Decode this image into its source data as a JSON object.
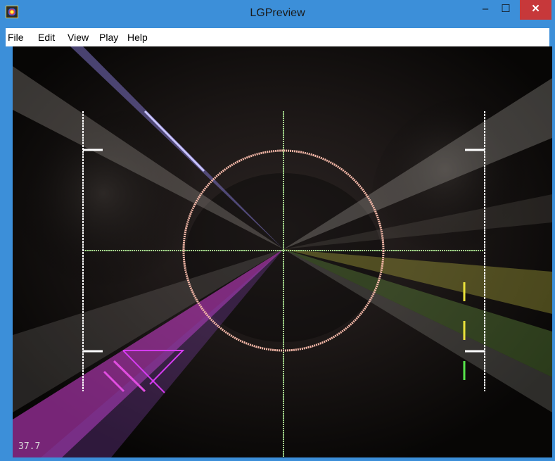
{
  "window": {
    "title": "LGPreview",
    "controls": {
      "minimize": "–",
      "maximize": "☐",
      "close": "✕"
    }
  },
  "menu": {
    "items": [
      "File",
      "Edit",
      "View",
      "Play",
      "Help"
    ]
  },
  "viewport": {
    "fps": "37.7"
  },
  "colors": {
    "titlebar": "#3c8fd9",
    "close_button": "#c7383a",
    "circle": "#f3b7a7",
    "crosshair": "#a8e08f",
    "magenta_beam": "#d33fd6",
    "yellow_beam": "#d7d44a",
    "green_beam": "#4fc24b",
    "white_marker": "#ffffff"
  }
}
